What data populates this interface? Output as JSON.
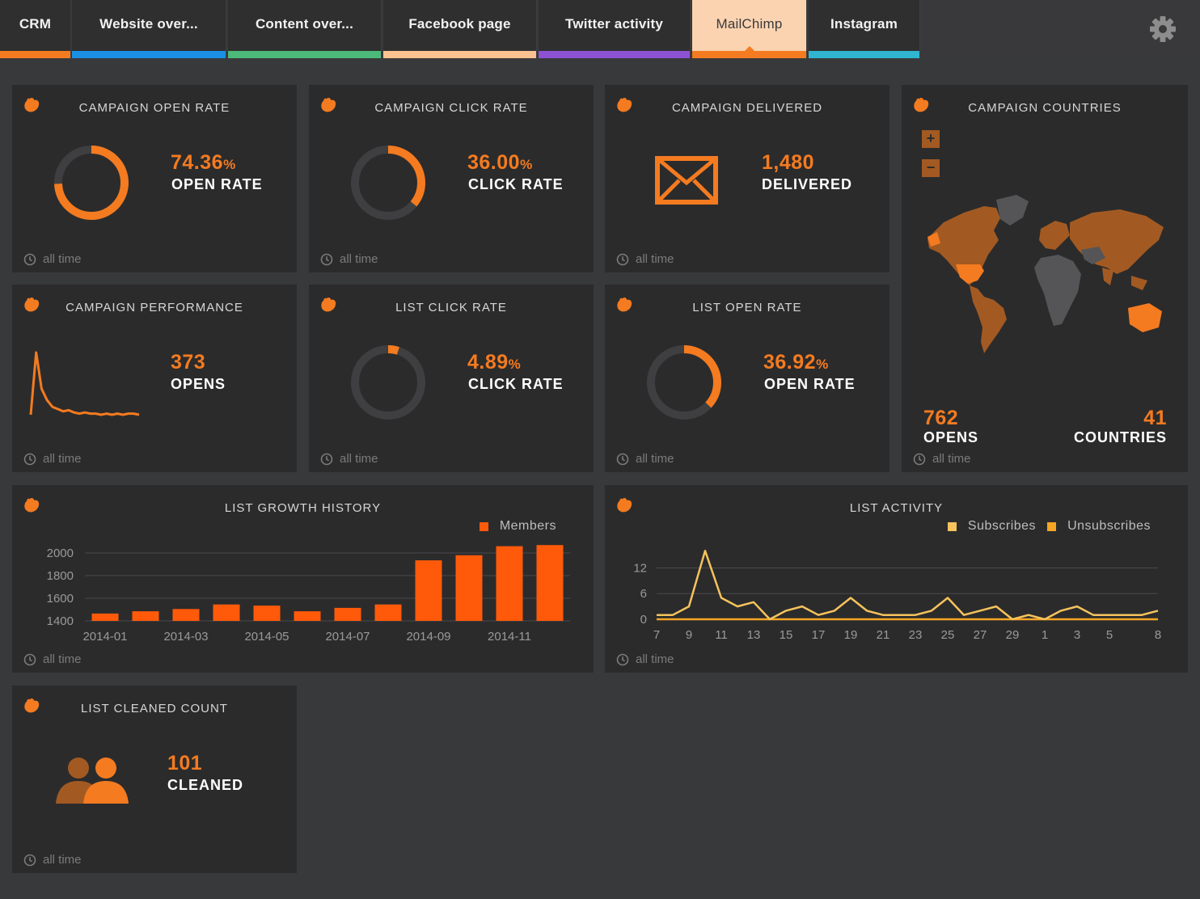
{
  "tabs": [
    {
      "label": "CRM",
      "color": "#f47b20",
      "active": false
    },
    {
      "label": "Website over...",
      "color": "#1a8fe3",
      "active": false
    },
    {
      "label": "Content over...",
      "color": "#4cb87a",
      "active": false
    },
    {
      "label": "Facebook page",
      "color": "#fbc291",
      "active": false
    },
    {
      "label": "Twitter activity",
      "color": "#8c52d1",
      "active": true
    },
    {
      "label": "MailChimp",
      "color": "#f47b20",
      "active": true
    },
    {
      "label": "Instagram",
      "color": "#2fb5d0",
      "active": false
    }
  ],
  "active_tab": "MailChimp",
  "footer_label": "all time",
  "colors": {
    "accent": "#f47b20",
    "bar": "#ff5a0a",
    "line": "#f6c35c",
    "track": "#3f3f41"
  },
  "widgets": {
    "campaign_open_rate": {
      "title": "CAMPAIGN OPEN RATE",
      "value": "74.36",
      "unit": "%",
      "label": "OPEN RATE",
      "fraction": 0.7436,
      "footer": "all time"
    },
    "campaign_click_rate": {
      "title": "CAMPAIGN CLICK RATE",
      "value": "36.00",
      "unit": "%",
      "label": "CLICK RATE",
      "fraction": 0.36,
      "footer": "all time"
    },
    "campaign_delivered": {
      "title": "CAMPAIGN DELIVERED",
      "value": "1,480",
      "label": "DELIVERED",
      "icon": "envelope-icon",
      "footer": "all time"
    },
    "campaign_countries": {
      "title": "CAMPAIGN COUNTRIES",
      "opens_value": "762",
      "opens_label": "OPENS",
      "countries_value": "41",
      "countries_label": "COUNTRIES",
      "zoom_in": "+",
      "zoom_out": "−",
      "footer": "all time"
    },
    "campaign_performance": {
      "title": "CAMPAIGN PERFORMANCE",
      "value": "373",
      "label": "OPENS",
      "footer": "all time"
    },
    "list_click_rate": {
      "title": "LIST CLICK RATE",
      "value": "4.89",
      "unit": "%",
      "label": "CLICK RATE",
      "fraction": 0.0489,
      "footer": "all time"
    },
    "list_open_rate": {
      "title": "LIST OPEN RATE",
      "value": "36.92",
      "unit": "%",
      "label": "OPEN RATE",
      "fraction": 0.3692,
      "footer": "all time"
    },
    "list_growth_history": {
      "title": "LIST GROWTH HISTORY",
      "footer": "all time"
    },
    "list_activity": {
      "title": "LIST ACTIVITY",
      "footer": "all time"
    },
    "list_cleaned_count": {
      "title": "LIST CLEANED COUNT",
      "value": "101",
      "label": "CLEANED",
      "icon": "users-icon",
      "footer": "all time"
    }
  },
  "chart_data": [
    {
      "type": "bar",
      "title": "LIST GROWTH HISTORY",
      "categories": [
        "2014-01",
        "2014-02",
        "2014-03",
        "2014-04",
        "2014-05",
        "2014-06",
        "2014-07",
        "2014-08",
        "2014-09",
        "2014-10",
        "2014-11",
        "2014-12"
      ],
      "tick_labels": [
        "2014-01",
        "2014-03",
        "2014-05",
        "2014-07",
        "2014-09",
        "2014-11"
      ],
      "series": [
        {
          "name": "Members",
          "values": [
            1465,
            1485,
            1505,
            1545,
            1535,
            1485,
            1515,
            1545,
            1935,
            1980,
            2060,
            2070
          ]
        }
      ],
      "yticks": [
        1400,
        1600,
        1800,
        2000
      ],
      "ylim": [
        1400,
        2100
      ],
      "grid": true,
      "legend": "top-right"
    },
    {
      "type": "line",
      "title": "LIST ACTIVITY",
      "x": [
        "7",
        "8",
        "9",
        "10",
        "11",
        "12",
        "13",
        "14",
        "15",
        "16",
        "17",
        "18",
        "19",
        "20",
        "21",
        "22",
        "23",
        "24",
        "25",
        "26",
        "27",
        "28",
        "29",
        "30",
        "1",
        "2",
        "3",
        "4",
        "5",
        "6",
        "7",
        "8"
      ],
      "xticks": [
        "7",
        "9",
        "11",
        "13",
        "15",
        "17",
        "19",
        "21",
        "23",
        "25",
        "27",
        "29",
        "1",
        "3",
        "5",
        "8"
      ],
      "series": [
        {
          "name": "Subscribes",
          "values": [
            1,
            1,
            3,
            16,
            5,
            3,
            4,
            0,
            2,
            3,
            1,
            2,
            5,
            2,
            1,
            1,
            1,
            2,
            5,
            1,
            2,
            3,
            0,
            1,
            0,
            2,
            3,
            1,
            1,
            1,
            1,
            2
          ]
        },
        {
          "name": "Unsubscribes",
          "values": [
            0,
            0,
            0,
            0,
            0,
            0,
            0,
            0,
            0,
            0,
            0,
            0,
            0,
            0,
            0,
            0,
            0,
            0,
            0,
            0,
            0,
            0,
            0,
            0,
            0,
            0,
            0,
            0,
            0,
            0,
            0,
            0
          ]
        }
      ],
      "yticks": [
        0,
        6,
        12
      ],
      "ylim": [
        0,
        17
      ],
      "grid": true,
      "legend": "top-right"
    },
    {
      "type": "line",
      "title": "CAMPAIGN PERFORMANCE",
      "values": [
        5,
        60,
        28,
        18,
        12,
        10,
        8,
        9,
        7,
        6,
        7,
        6,
        6,
        5,
        6,
        5,
        6,
        5,
        6,
        6,
        5
      ]
    }
  ]
}
